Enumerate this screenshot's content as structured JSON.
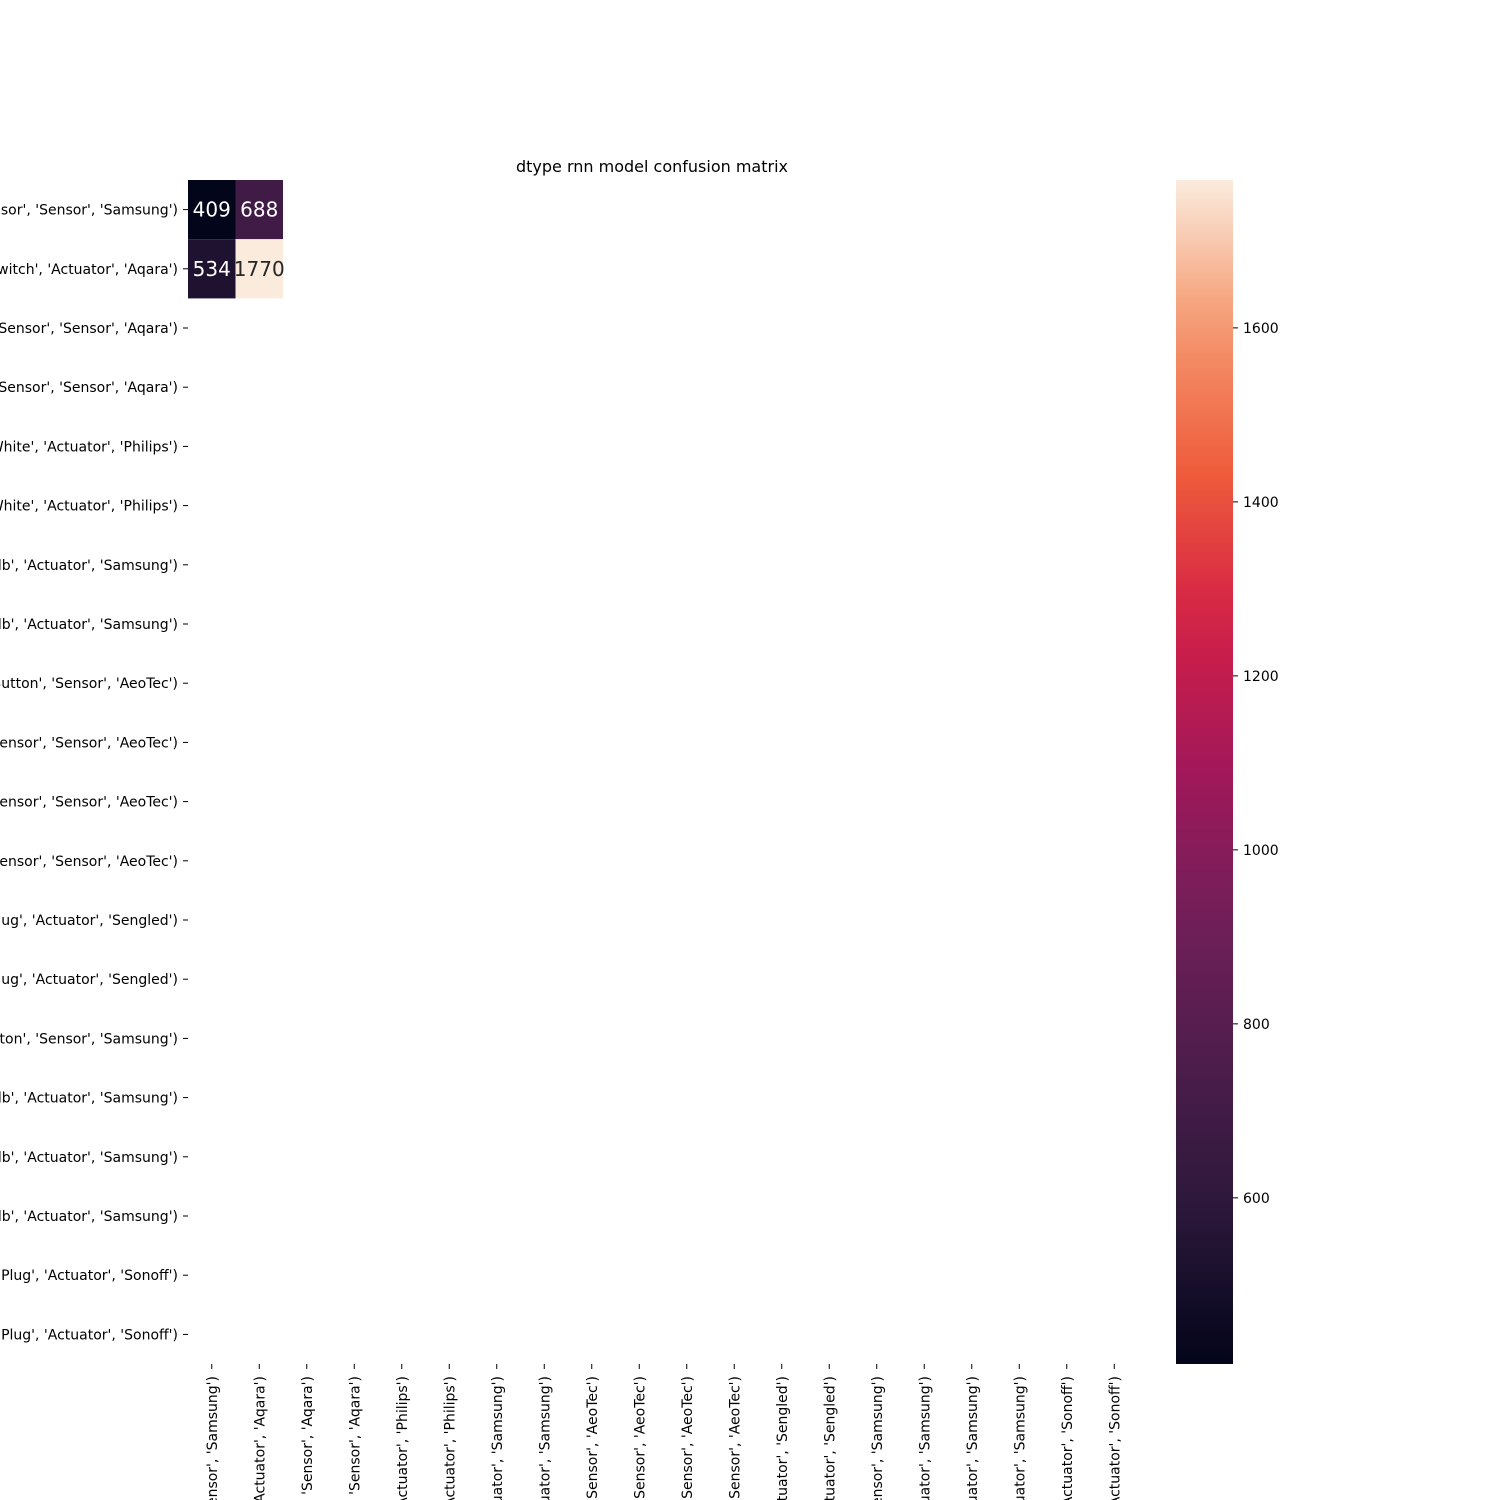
{
  "chart_data": {
    "type": "heatmap",
    "title": "dtype rnn model confusion matrix",
    "xlabel": "",
    "ylabel": "",
    "y_tick_labels": [
      "sor', 'Sensor', 'Samsung')",
      "witch', 'Actuator', 'Aqara')",
      "Sensor', 'Sensor', 'Aqara')",
      "Sensor', 'Sensor', 'Aqara')",
      "White', 'Actuator', 'Philips')",
      "White', 'Actuator', 'Philips')",
      "lb', 'Actuator', 'Samsung')",
      "lb', 'Actuator', 'Samsung')",
      "Button', 'Sensor', 'AeoTec')",
      "ensor', 'Sensor', 'AeoTec')",
      "ensor', 'Sensor', 'AeoTec')",
      "ensor', 'Sensor', 'AeoTec')",
      "lug', 'Actuator', 'Sengled')",
      "lug', 'Actuator', 'Sengled')",
      "ton', 'Sensor', 'Samsung')",
      "lb', 'Actuator', 'Samsung')",
      "lb', 'Actuator', 'Samsung')",
      "lb', 'Actuator', 'Samsung')",
      "Plug', 'Actuator', 'Sonoff')",
      "Plug', 'Actuator', 'Sonoff')"
    ],
    "x_tick_labels": [
      "', 'Sensor', 'Samsung')",
      "ch', 'Actuator', 'Aqara')",
      "sor', 'Sensor', 'Aqara')",
      "sor', 'Sensor', 'Aqara')",
      "e', 'Actuator', 'Philips')",
      "e', 'Actuator', 'Philips')",
      "'Actuator', 'Samsung')",
      "'Actuator', 'Samsung')",
      "on', 'Sensor', 'AeoTec')",
      "sor', 'Sensor', 'AeoTec')",
      "sor', 'Sensor', 'AeoTec')",
      "sor', 'Sensor', 'AeoTec')",
      "', 'Actuator', 'Sengled')",
      "', 'Actuator', 'Sengled')",
      "', 'Sensor', 'Samsung')",
      "'Actuator', 'Samsung')",
      "'Actuator', 'Samsung')",
      "'Actuator', 'Samsung')",
      "g', 'Actuator', 'Sonoff')",
      "g', 'Actuator', 'Sonoff')"
    ],
    "cells": [
      {
        "row": 0,
        "col": 0,
        "value": 409
      },
      {
        "row": 0,
        "col": 1,
        "value": 688
      },
      {
        "row": 1,
        "col": 0,
        "value": 534
      },
      {
        "row": 1,
        "col": 1,
        "value": 1770
      }
    ],
    "colorbar": {
      "colormap": "rocket",
      "vmin": 409,
      "vmax": 1770,
      "ticks": [
        600,
        800,
        1000,
        1200,
        1400,
        1600
      ]
    },
    "grid": false,
    "legend": "colorbar-right"
  }
}
